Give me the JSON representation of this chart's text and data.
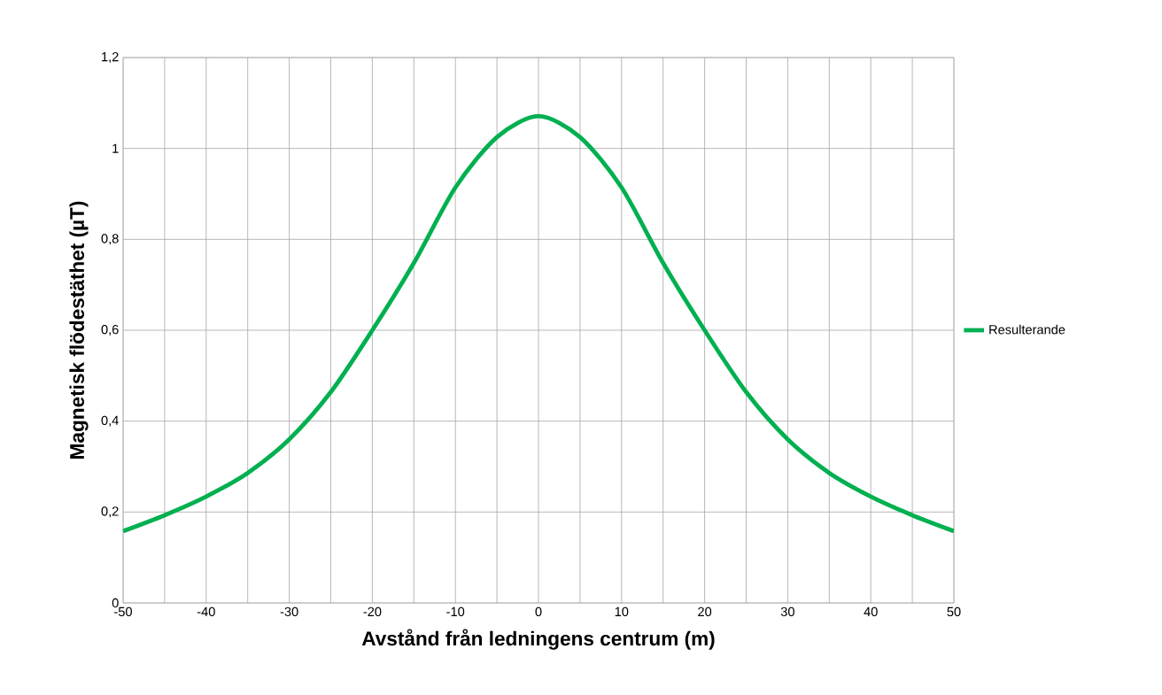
{
  "chart_data": {
    "type": "line",
    "xlabel": "Avstånd från ledningens centrum (m)",
    "ylabel": "Magnetisk flödestäthet (µT)",
    "x": [
      -50,
      -45,
      -40,
      -35,
      -30,
      -25,
      -20,
      -15,
      -10,
      -5,
      0,
      5,
      10,
      15,
      20,
      25,
      30,
      35,
      40,
      45,
      50
    ],
    "series": [
      {
        "name": "Resulterande",
        "color": "#00b050",
        "values": [
          0.158,
          0.193,
          0.234,
          0.286,
          0.36,
          0.464,
          0.6,
          0.748,
          0.914,
          1.025,
          1.071,
          1.025,
          0.914,
          0.748,
          0.6,
          0.464,
          0.36,
          0.286,
          0.234,
          0.193,
          0.158
        ]
      }
    ],
    "xlim": [
      -50,
      50
    ],
    "ylim": [
      0,
      1.2
    ],
    "xticks": [
      -50,
      {
        "value": -45,
        "label": null
      },
      -40,
      {
        "value": -35,
        "label": null
      },
      -30,
      {
        "value": -25,
        "label": null
      },
      -20,
      {
        "value": -15,
        "label": null
      },
      -10,
      {
        "value": -5,
        "label": null
      },
      0,
      {
        "value": 5,
        "label": null
      },
      10,
      {
        "value": 15,
        "label": null
      },
      20,
      {
        "value": 25,
        "label": null
      },
      30,
      {
        "value": 35,
        "label": null
      },
      40,
      {
        "value": 45,
        "label": null
      },
      50
    ],
    "yticks": [
      0,
      {
        "value": 0.2,
        "label": "0,2"
      },
      {
        "value": 0.4,
        "label": "0,4"
      },
      {
        "value": 0.6,
        "label": "0,6"
      },
      {
        "value": 0.8,
        "label": "0,8"
      },
      1,
      {
        "value": 1.2,
        "label": "1,2"
      }
    ],
    "grid": true,
    "legend": "right",
    "marker": "none",
    "line_style": "solid"
  }
}
